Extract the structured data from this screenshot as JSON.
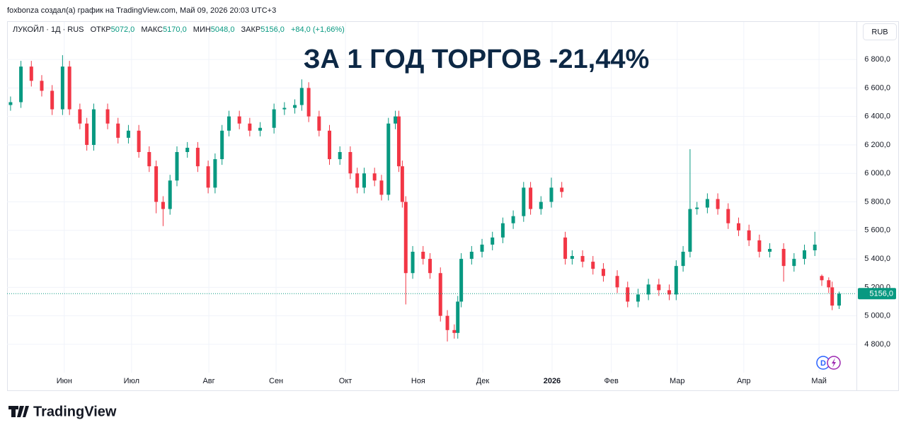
{
  "header": {
    "credit": "foxbonza создал(а) график на TradingView.com, Май 09, 2026 20:03 UTC+3"
  },
  "legend": {
    "symbol": "ЛУКОЙЛ · 1Д · RUS",
    "open_label": "ОТКР",
    "open": "5072,0",
    "high_label": "МАКС",
    "high": "5170,0",
    "low_label": "МИН",
    "low": "5048,0",
    "close_label": "ЗАКР",
    "close": "5156,0",
    "change": "+84,0 (+1,66%)"
  },
  "currency_button": "RUB",
  "footer": {
    "brand": "TradingView"
  },
  "chart_data": {
    "type": "candlestick",
    "annotation": "ЗА 1 ГОД ТОРГОВ -21,44%",
    "up_color": "#089981",
    "down_color": "#f23645",
    "grid": true,
    "x": [
      0,
      3,
      6,
      9,
      12,
      15,
      17,
      20,
      22,
      24,
      28,
      31,
      34,
      37,
      40,
      42,
      44,
      46,
      48,
      51,
      54,
      57,
      59,
      61,
      63,
      66,
      69,
      72,
      76,
      79,
      82,
      84,
      86,
      89,
      92,
      95,
      98,
      100,
      102,
      105,
      107,
      109,
      111,
      112,
      113,
      114,
      116,
      119,
      121,
      124,
      126,
      128,
      129,
      130,
      133,
      136,
      139,
      142,
      145,
      148,
      150,
      153,
      156,
      159,
      160,
      162,
      165,
      168,
      171,
      175,
      178,
      181,
      184,
      187,
      190,
      192,
      194,
      196,
      198,
      201,
      204,
      207,
      210,
      213,
      216,
      219,
      223,
      226,
      229,
      232,
      234,
      236,
      237,
      239
    ],
    "open": [
      6480,
      6500,
      6750,
      6650,
      6580,
      6450,
      6750,
      6450,
      6350,
      6200,
      6450,
      6350,
      6250,
      6300,
      6150,
      6050,
      5800,
      5750,
      5950,
      6150,
      6180,
      6050,
      5900,
      6100,
      6300,
      6400,
      6350,
      6300,
      6320,
      6450,
      6460,
      6480,
      6600,
      6400,
      6300,
      6100,
      6150,
      6000,
      5900,
      6000,
      5950,
      5850,
      6350,
      6400,
      6050,
      5800,
      5300,
      5450,
      5400,
      5300,
      5000,
      4900,
      4880,
      5100,
      5400,
      5450,
      5500,
      5550,
      5650,
      5700,
      5900,
      5750,
      5800,
      5900,
      5550,
      5400,
      5420,
      5380,
      5330,
      5280,
      5200,
      5100,
      5150,
      5220,
      5180,
      5150,
      5350,
      5450,
      5750,
      5760,
      5820,
      5750,
      5650,
      5600,
      5530,
      5450,
      5470,
      5350,
      5400,
      5460,
      5280,
      5250,
      5200,
      5072
    ],
    "high": [
      6540,
      6790,
      6790,
      6690,
      6620,
      6830,
      6790,
      6490,
      6390,
      6490,
      6490,
      6390,
      6340,
      6340,
      6190,
      6090,
      5840,
      5990,
      6190,
      6220,
      6220,
      6090,
      6140,
      6340,
      6440,
      6440,
      6390,
      6360,
      6490,
      6500,
      6520,
      6660,
      6640,
      6440,
      6340,
      6190,
      6190,
      6040,
      6040,
      6040,
      5990,
      6390,
      6440,
      6440,
      6090,
      5840,
      5490,
      5490,
      5440,
      5340,
      5040,
      4940,
      5140,
      5440,
      5490,
      5540,
      5590,
      5690,
      5740,
      5940,
      5940,
      5840,
      5970,
      5940,
      5590,
      5460,
      5460,
      5420,
      5370,
      5320,
      5240,
      5190,
      5260,
      5260,
      5220,
      5390,
      5490,
      6170,
      5800,
      5860,
      5860,
      5790,
      5690,
      5640,
      5570,
      5510,
      5510,
      5440,
      5500,
      5590,
      5290,
      5270,
      5240,
      5170
    ],
    "low": [
      6440,
      6460,
      6610,
      6540,
      6410,
      6410,
      6410,
      6310,
      6160,
      6160,
      6310,
      6210,
      6210,
      6110,
      6010,
      5720,
      5630,
      5710,
      5910,
      6110,
      6010,
      5860,
      5860,
      6060,
      6260,
      6310,
      6260,
      6260,
      6280,
      6410,
      6420,
      6440,
      6360,
      6260,
      6060,
      6060,
      5960,
      5860,
      5860,
      5910,
      5810,
      5810,
      6310,
      6010,
      5760,
      5080,
      5260,
      5360,
      5260,
      4960,
      4820,
      4840,
      4840,
      5060,
      5360,
      5410,
      5460,
      5510,
      5610,
      5660,
      5710,
      5710,
      5760,
      5830,
      5360,
      5360,
      5340,
      5290,
      5240,
      5160,
      5060,
      5060,
      5110,
      5140,
      5110,
      5110,
      5310,
      5410,
      5710,
      5720,
      5710,
      5610,
      5560,
      5490,
      5410,
      5410,
      5240,
      5310,
      5360,
      5420,
      5210,
      5160,
      5040,
      5048
    ],
    "close": [
      6500,
      6750,
      6650,
      6580,
      6450,
      6750,
      6450,
      6350,
      6200,
      6450,
      6350,
      6250,
      6300,
      6150,
      6050,
      5800,
      5750,
      5950,
      6150,
      6180,
      6050,
      5900,
      6100,
      6300,
      6400,
      6350,
      6300,
      6320,
      6450,
      6460,
      6480,
      6600,
      6400,
      6300,
      6100,
      6150,
      6000,
      5900,
      6000,
      5950,
      5850,
      6350,
      6400,
      6050,
      5800,
      5300,
      5450,
      5400,
      5300,
      5000,
      4900,
      4880,
      5100,
      5400,
      5450,
      5500,
      5550,
      5650,
      5700,
      5900,
      5750,
      5800,
      5900,
      5870,
      5400,
      5420,
      5380,
      5330,
      5280,
      5200,
      5100,
      5150,
      5220,
      5180,
      5150,
      5350,
      5450,
      5750,
      5760,
      5820,
      5750,
      5650,
      5600,
      5530,
      5450,
      5470,
      5350,
      5400,
      5460,
      5500,
      5250,
      5200,
      5072,
      5156
    ],
    "xlim": [
      -1,
      244
    ],
    "xticks": [
      {
        "value": 15.5,
        "label": "Июн"
      },
      {
        "value": 34.9,
        "label": "Июл"
      },
      {
        "value": 57.2,
        "label": "Авг"
      },
      {
        "value": 76.6,
        "label": "Сен"
      },
      {
        "value": 96.6,
        "label": "Окт"
      },
      {
        "value": 117.6,
        "label": "Ноя"
      },
      {
        "value": 136.2,
        "label": "Дек"
      },
      {
        "value": 156.2,
        "label": "2026"
      },
      {
        "value": 173.3,
        "label": "Фев"
      },
      {
        "value": 192.3,
        "label": "Мар"
      },
      {
        "value": 211.5,
        "label": "Апр"
      },
      {
        "value": 233.2,
        "label": "Май"
      }
    ],
    "ylim": [
      4611,
      6994
    ],
    "yticks": [
      {
        "value": 4800,
        "label": "4 800,0"
      },
      {
        "value": 5000,
        "label": "5 000,0"
      },
      {
        "value": 5200,
        "label": "5 200,0"
      },
      {
        "value": 5400,
        "label": "5 400,0"
      },
      {
        "value": 5600,
        "label": "5 600,0"
      },
      {
        "value": 5800,
        "label": "5 800,0"
      },
      {
        "value": 6000,
        "label": "6 000,0"
      },
      {
        "value": 6200,
        "label": "6 200,0"
      },
      {
        "value": 6400,
        "label": "6 400,0"
      },
      {
        "value": 6600,
        "label": "6 600,0"
      },
      {
        "value": 6800,
        "label": "6 800,0"
      }
    ],
    "last_price": {
      "value": 5156,
      "label": "5156,0"
    }
  }
}
